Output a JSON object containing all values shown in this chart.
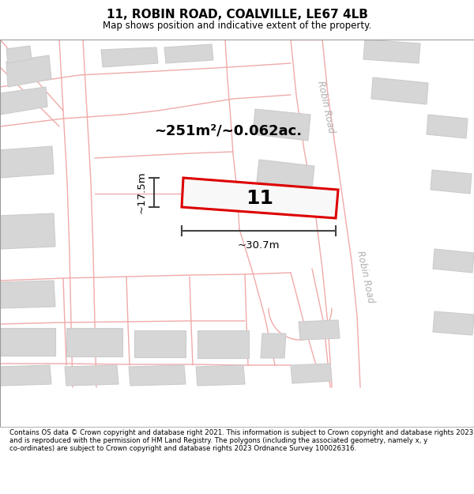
{
  "title": "11, ROBIN ROAD, COALVILLE, LE67 4LB",
  "subtitle": "Map shows position and indicative extent of the property.",
  "footer": "Contains OS data © Crown copyright and database right 2021. This information is subject to Crown copyright and database rights 2023 and is reproduced with the permission of HM Land Registry. The polygons (including the associated geometry, namely x, y co-ordinates) are subject to Crown copyright and database rights 2023 Ordnance Survey 100026316.",
  "map_bg": "#ffffff",
  "plot_color": "#dd0000",
  "plot_fill": "#f8f8f8",
  "building_fill": "#d6d6d6",
  "building_stroke": "#cccccc",
  "road_color": "#f0aaaa",
  "dim_color": "#444444",
  "area_text": "~251m²/~0.062ac.",
  "property_label": "11",
  "dim_width": "~30.7m",
  "dim_height": "~17.5m",
  "road_label": "Robin Road"
}
